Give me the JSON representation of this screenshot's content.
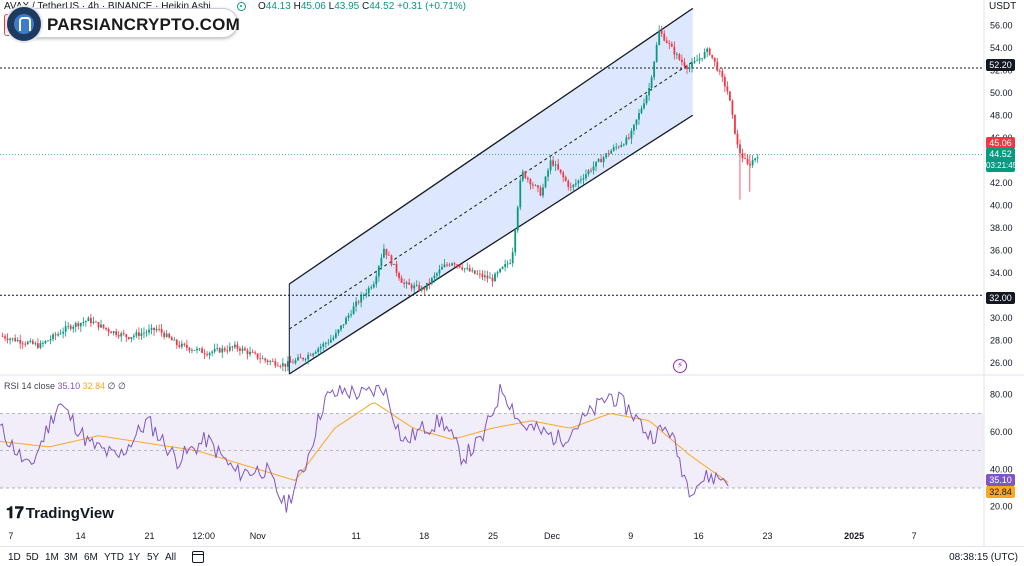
{
  "header": {
    "symbol_text": "AVAX / TetherUS · 4h · BINANCE · Heikin Ashi",
    "ohlc": {
      "o_key": "O",
      "o": "44.13",
      "h_key": "H",
      "h": "45.06",
      "l_key": "L",
      "l": "43.95",
      "c_key": "C",
      "c": "44.52",
      "change": "+0.31 (+0.71%)"
    },
    "quote_currency": "USDT"
  },
  "watermark": {
    "brand_text": "PARSIANCRYPTO.COM",
    "logo_icon": "parsiancrypto-logo-icon"
  },
  "price_axis": {
    "ticks": [
      "56.00",
      "54.00",
      "52.00",
      "50.00",
      "48.00",
      "46.00",
      "42.00",
      "40.00",
      "38.00",
      "36.00",
      "34.00",
      "32.00",
      "30.00",
      "28.00",
      "26.00"
    ],
    "labels": {
      "level_high": "52.20",
      "level_low": "32.00",
      "high_marker": "45.06",
      "last_price": "44.52",
      "countdown": "03:21:45"
    }
  },
  "rsi": {
    "legend_name": "RSI 14 close",
    "rsi_value": "35.10",
    "ma_value": "32.84",
    "legend_suffix": "∅ ∅",
    "ticks": [
      "80.00",
      "60.00",
      "40.00",
      "20.00"
    ],
    "rsi_label": "35.10",
    "ma_label": "32.84"
  },
  "time_axis": {
    "labels": [
      "7",
      "14",
      "21",
      "12:00",
      "Nov",
      "11",
      "18",
      "25",
      "Dec",
      "9",
      "16",
      "23",
      "2025",
      "7"
    ]
  },
  "bottom_bar": {
    "ranges": [
      "1D",
      "5D",
      "1M",
      "3M",
      "6M",
      "YTD",
      "1Y",
      "5Y",
      "All"
    ],
    "calendar_icon": "calendar-icon",
    "clock": "08:38:15 (UTC)"
  },
  "branding": {
    "tv_text": "TradingView",
    "tv_icon": "tradingview-logo-icon"
  },
  "colors": {
    "up": "#089981",
    "down": "#f23645",
    "channel_fill": "#d9e5ff",
    "rsi_line": "#7e57c2",
    "rsi_ma": "#f9a825",
    "rsi_band": "#ede7f6"
  },
  "chart_data": {
    "type": "candlestick",
    "instrument": "AVAX / TetherUS",
    "timeframe": "4h",
    "price_range": [
      25,
      57
    ],
    "horizontal_levels": [
      52.2,
      32.0
    ],
    "price_path": [
      {
        "t": 0.0,
        "p": 28.4
      },
      {
        "t": 0.04,
        "p": 27.5
      },
      {
        "t": 0.07,
        "p": 29.2
      },
      {
        "t": 0.09,
        "p": 29.8
      },
      {
        "t": 0.11,
        "p": 28.9
      },
      {
        "t": 0.13,
        "p": 28.3
      },
      {
        "t": 0.16,
        "p": 29.0
      },
      {
        "t": 0.18,
        "p": 27.6
      },
      {
        "t": 0.21,
        "p": 26.9
      },
      {
        "t": 0.24,
        "p": 27.4
      },
      {
        "t": 0.27,
        "p": 26.2
      },
      {
        "t": 0.29,
        "p": 25.8
      },
      {
        "t": 0.31,
        "p": 26.5
      },
      {
        "t": 0.34,
        "p": 28.3
      },
      {
        "t": 0.36,
        "p": 31.0
      },
      {
        "t": 0.38,
        "p": 33.2
      },
      {
        "t": 0.39,
        "p": 36.2
      },
      {
        "t": 0.41,
        "p": 33.0
      },
      {
        "t": 0.43,
        "p": 32.5
      },
      {
        "t": 0.45,
        "p": 34.5
      },
      {
        "t": 0.46,
        "p": 35.0
      },
      {
        "t": 0.48,
        "p": 34.0
      },
      {
        "t": 0.5,
        "p": 33.4
      },
      {
        "t": 0.52,
        "p": 35.2
      },
      {
        "t": 0.53,
        "p": 43.0
      },
      {
        "t": 0.55,
        "p": 41.0
      },
      {
        "t": 0.56,
        "p": 44.0
      },
      {
        "t": 0.58,
        "p": 41.5
      },
      {
        "t": 0.6,
        "p": 43.2
      },
      {
        "t": 0.62,
        "p": 44.8
      },
      {
        "t": 0.64,
        "p": 46.0
      },
      {
        "t": 0.66,
        "p": 50.5
      },
      {
        "t": 0.67,
        "p": 55.5
      },
      {
        "t": 0.69,
        "p": 53.0
      },
      {
        "t": 0.7,
        "p": 52.2
      },
      {
        "t": 0.72,
        "p": 53.8
      },
      {
        "t": 0.73,
        "p": 52.0
      },
      {
        "t": 0.74,
        "p": 50.0
      },
      {
        "t": 0.75,
        "p": 45.0
      },
      {
        "t": 0.76,
        "p": 43.5
      },
      {
        "t": 0.77,
        "p": 44.5
      }
    ],
    "rsi_path": [
      {
        "t": 0.0,
        "v": 62
      },
      {
        "t": 0.03,
        "v": 40
      },
      {
        "t": 0.06,
        "v": 76
      },
      {
        "t": 0.09,
        "v": 54
      },
      {
        "t": 0.12,
        "v": 46
      },
      {
        "t": 0.15,
        "v": 66
      },
      {
        "t": 0.18,
        "v": 45
      },
      {
        "t": 0.21,
        "v": 56
      },
      {
        "t": 0.24,
        "v": 38
      },
      {
        "t": 0.27,
        "v": 40
      },
      {
        "t": 0.29,
        "v": 20
      },
      {
        "t": 0.31,
        "v": 42
      },
      {
        "t": 0.33,
        "v": 78
      },
      {
        "t": 0.35,
        "v": 82
      },
      {
        "t": 0.37,
        "v": 80
      },
      {
        "t": 0.39,
        "v": 84
      },
      {
        "t": 0.41,
        "v": 54
      },
      {
        "t": 0.43,
        "v": 62
      },
      {
        "t": 0.45,
        "v": 66
      },
      {
        "t": 0.47,
        "v": 46
      },
      {
        "t": 0.49,
        "v": 56
      },
      {
        "t": 0.51,
        "v": 84
      },
      {
        "t": 0.53,
        "v": 64
      },
      {
        "t": 0.55,
        "v": 60
      },
      {
        "t": 0.57,
        "v": 56
      },
      {
        "t": 0.6,
        "v": 70
      },
      {
        "t": 0.62,
        "v": 80
      },
      {
        "t": 0.64,
        "v": 72
      },
      {
        "t": 0.66,
        "v": 58
      },
      {
        "t": 0.68,
        "v": 62
      },
      {
        "t": 0.7,
        "v": 30
      },
      {
        "t": 0.72,
        "v": 36
      },
      {
        "t": 0.74,
        "v": 35
      }
    ],
    "rsi_ma_path": [
      {
        "t": 0.0,
        "v": 55
      },
      {
        "t": 0.05,
        "v": 52
      },
      {
        "t": 0.1,
        "v": 58
      },
      {
        "t": 0.15,
        "v": 54
      },
      {
        "t": 0.2,
        "v": 50
      },
      {
        "t": 0.25,
        "v": 42
      },
      {
        "t": 0.3,
        "v": 34
      },
      {
        "t": 0.34,
        "v": 62
      },
      {
        "t": 0.38,
        "v": 76
      },
      {
        "t": 0.42,
        "v": 62
      },
      {
        "t": 0.46,
        "v": 56
      },
      {
        "t": 0.5,
        "v": 62
      },
      {
        "t": 0.54,
        "v": 66
      },
      {
        "t": 0.58,
        "v": 62
      },
      {
        "t": 0.62,
        "v": 70
      },
      {
        "t": 0.66,
        "v": 66
      },
      {
        "t": 0.7,
        "v": 48
      },
      {
        "t": 0.74,
        "v": 33
      }
    ],
    "rsi_range": [
      15,
      90
    ],
    "rsi_bands": [
      70,
      50,
      30
    ]
  }
}
